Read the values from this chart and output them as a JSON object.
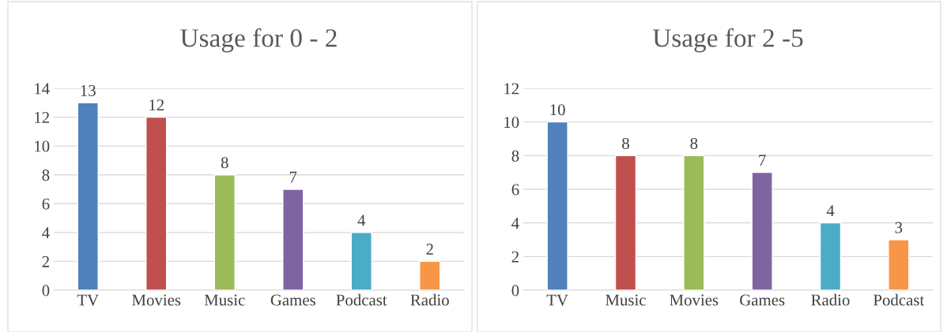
{
  "chart_data": [
    {
      "type": "bar",
      "title": "Usage for 0 - 2",
      "categories": [
        "TV",
        "Movies",
        "Music",
        "Games",
        "Podcast",
        "Radio"
      ],
      "values": [
        13,
        12,
        8,
        7,
        4,
        2
      ],
      "colors": [
        "#4f81bd",
        "#c0504d",
        "#9bbb59",
        "#8064a2",
        "#4bacc6",
        "#f79646"
      ],
      "ylim": [
        0,
        14
      ],
      "yticks": [
        0,
        2,
        4,
        6,
        8,
        10,
        12,
        14
      ],
      "grid": "y",
      "data_labels": true,
      "legend": false
    },
    {
      "type": "bar",
      "title": "Usage for 2 -5",
      "categories": [
        "TV",
        "Music",
        "Movies",
        "Games",
        "Radio",
        "Podcast"
      ],
      "values": [
        10,
        8,
        8,
        7,
        4,
        3
      ],
      "colors": [
        "#4f81bd",
        "#c0504d",
        "#9bbb59",
        "#8064a2",
        "#4bacc6",
        "#f79646"
      ],
      "ylim": [
        0,
        12
      ],
      "yticks": [
        0,
        2,
        4,
        6,
        8,
        10,
        12
      ],
      "grid": "y",
      "data_labels": true,
      "legend": false
    }
  ]
}
